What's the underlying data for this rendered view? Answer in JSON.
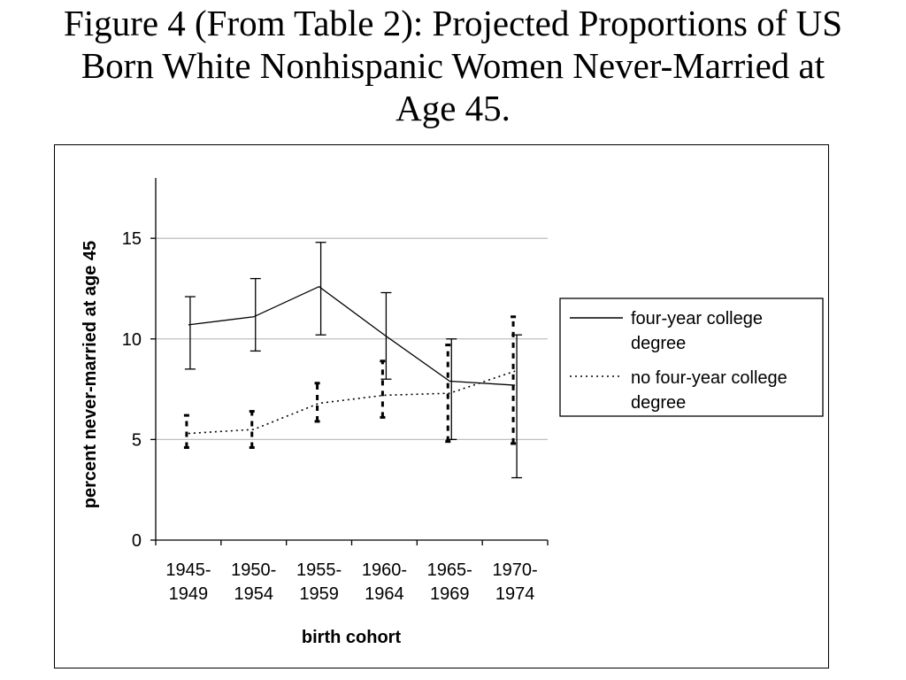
{
  "page": {
    "title_lines": [
      "Figure 4 (From Table 2): Projected Proportions of US",
      "Born White Nonhispanic Women Never-Married at",
      "Age 45."
    ]
  },
  "chart_data": {
    "type": "line",
    "title": "Figure 4 (From Table 2): Projected Proportions of US Born White Nonhispanic Women Never-Married at Age 45.",
    "xlabel": "birth cohort",
    "ylabel": "percent never-married at age 45",
    "ylim": [
      0,
      18
    ],
    "y_ticks": [
      0,
      5,
      10,
      15
    ],
    "grid": "horizontal",
    "legend_position": "right",
    "categories": [
      [
        "1945-",
        "1949"
      ],
      [
        "1950-",
        "1954"
      ],
      [
        "1955-",
        "1959"
      ],
      [
        "1960-",
        "1964"
      ],
      [
        "1965-",
        "1969"
      ],
      [
        "1970-",
        "1974"
      ]
    ],
    "series": [
      {
        "name": [
          "four-year college",
          "degree"
        ],
        "style": "solid",
        "values": [
          10.7,
          11.1,
          12.6,
          10.2,
          7.9,
          7.7
        ],
        "error_low": [
          8.5,
          9.4,
          10.2,
          8.0,
          5.0,
          3.1
        ],
        "error_high": [
          12.1,
          13.0,
          14.8,
          12.3,
          10.0,
          10.2
        ]
      },
      {
        "name": [
          "no four-year college",
          "degree"
        ],
        "style": "dotted",
        "values": [
          5.3,
          5.5,
          6.8,
          7.2,
          7.3,
          8.4
        ],
        "error_low": [
          4.6,
          4.6,
          5.9,
          6.1,
          4.9,
          4.8
        ],
        "error_high": [
          6.2,
          6.4,
          7.8,
          8.9,
          9.7,
          11.1
        ]
      }
    ],
    "colors": {
      "line": "#000000",
      "grid": "#c0c0c0"
    }
  }
}
